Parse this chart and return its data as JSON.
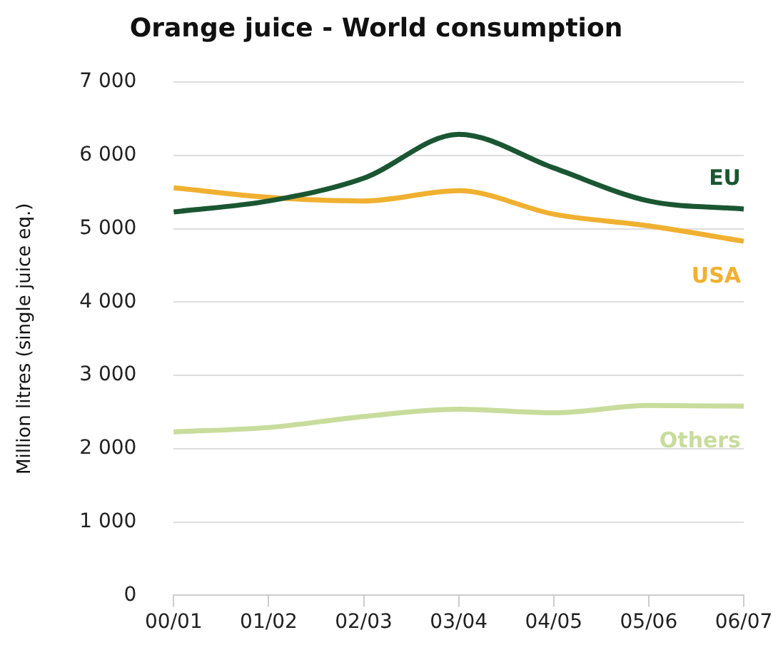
{
  "chart_data": {
    "type": "line",
    "title": "Orange juice - World consumption",
    "ylabel": "Million litres (single juice eq.)",
    "categories": [
      "00/01",
      "01/02",
      "02/03",
      "03/04",
      "04/05",
      "05/06",
      "06/07"
    ],
    "series": [
      {
        "name": "EU",
        "color": "#1a5632",
        "values": [
          5230,
          5380,
          5690,
          6290,
          5830,
          5380,
          5270
        ]
      },
      {
        "name": "USA",
        "color": "#f0b030",
        "values": [
          5560,
          5430,
          5380,
          5520,
          5200,
          5040,
          4830
        ]
      },
      {
        "name": "Others",
        "color": "#c8dc9c",
        "values": [
          2230,
          2290,
          2440,
          2540,
          2490,
          2590,
          2580
        ]
      }
    ],
    "ylim": [
      0,
      7000
    ],
    "yticks": [
      {
        "value": 0,
        "label": "0"
      },
      {
        "value": 1000,
        "label": "1 000"
      },
      {
        "value": 2000,
        "label": "2 000"
      },
      {
        "value": 3000,
        "label": "3 000"
      },
      {
        "value": 4000,
        "label": "4 000"
      },
      {
        "value": 5000,
        "label": "5 000"
      },
      {
        "value": 6000,
        "label": "6 000"
      },
      {
        "value": 7000,
        "label": "7 000"
      }
    ],
    "grid": "y",
    "legend": false,
    "marker": "none",
    "line_style": "solid"
  }
}
